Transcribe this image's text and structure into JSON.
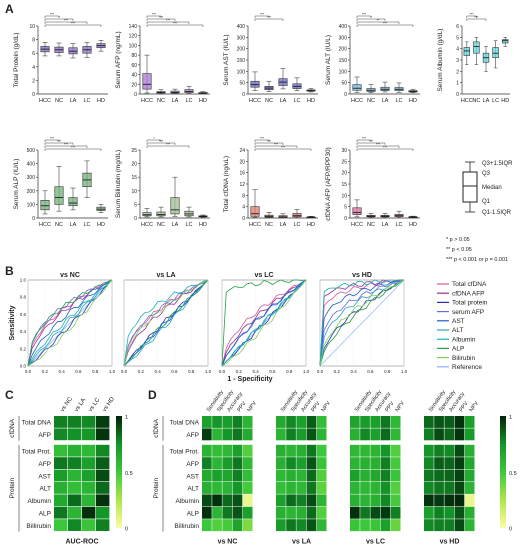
{
  "colors": {
    "HCC": "#a975d6",
    "NC": "#c8a8e6",
    "LA": "#8a6fc8",
    "LC": "#9b86d8",
    "HD": "#7b55c4",
    "ALB": "#5fd8e0",
    "ALP": "#72b27a",
    "BIL": "#9fbf8f",
    "CFD": "#e07a6a",
    "AFPR": "#e06aa0",
    "roc": {
      "total_cfdna": "#d05a9a",
      "cfdna_afp": "#9a2e96",
      "total_protein": "#2b2bb4",
      "serum_afp": "#6b6be0",
      "ast": "#1c5cc8",
      "alt": "#2aa0c8",
      "albumin": "#16b4b4",
      "alp": "#22a044",
      "bilirubin": "#7ed060",
      "reference": "#8fb3ff"
    }
  },
  "panel_labels": {
    "A": "A",
    "B": "B",
    "C": "C",
    "D": "D"
  },
  "groups": [
    "HCC",
    "NC",
    "LA",
    "LC",
    "HD"
  ],
  "boxplots": [
    {
      "ylabel": "Total Protein (g/dL)",
      "ticks": [
        "0",
        "2",
        "4",
        "6",
        "8",
        "10"
      ],
      "ylim": [
        0,
        10
      ],
      "color": "#8a6fc8",
      "stats": [
        [
          5.6,
          6.2,
          6.6,
          7.0,
          7.6
        ],
        [
          5.6,
          6.1,
          6.5,
          6.9,
          7.5
        ],
        [
          5.3,
          5.9,
          6.3,
          6.8,
          7.4
        ],
        [
          5.4,
          6.0,
          6.5,
          7.0,
          7.6
        ],
        [
          6.3,
          6.8,
          7.1,
          7.4,
          7.9
        ]
      ],
      "sig": [
        "***",
        "*",
        "***",
        "***"
      ]
    },
    {
      "ylabel": "Serum AFP (ng/mL)",
      "ticks": [
        "0",
        "20",
        "40",
        "60",
        "80",
        "100",
        "120",
        "140"
      ],
      "ylim": [
        0,
        140
      ],
      "color": "#a975d6",
      "stats": [
        [
          2,
          10,
          20,
          42,
          80
        ],
        [
          1,
          2,
          3,
          5,
          9
        ],
        [
          1,
          2,
          3,
          6,
          10
        ],
        [
          1,
          3,
          5,
          9,
          16
        ],
        [
          1,
          2,
          2,
          3,
          5
        ]
      ],
      "sig": [
        "***",
        "***",
        "***",
        "***"
      ]
    },
    {
      "ylabel": "Serum AST (IU/L)",
      "ticks": [
        "0",
        "50",
        "100",
        "150",
        "200",
        "300",
        "400"
      ],
      "ylim": [
        0,
        400
      ],
      "color": "#6a68cc",
      "stats": [
        [
          20,
          40,
          55,
          75,
          130
        ],
        [
          15,
          25,
          35,
          45,
          75
        ],
        [
          30,
          50,
          70,
          90,
          150
        ],
        [
          20,
          32,
          45,
          60,
          95
        ],
        [
          12,
          17,
          20,
          24,
          32
        ]
      ],
      "sig": [
        "***",
        "***"
      ]
    },
    {
      "ylabel": "Serum ALT (IU/L)",
      "ticks": [
        "0",
        "50",
        "100",
        "150",
        "200",
        "300",
        "400"
      ],
      "ylim": [
        0,
        400
      ],
      "color": "#6ab8d8",
      "stats": [
        [
          10,
          22,
          34,
          55,
          100
        ],
        [
          8,
          15,
          22,
          32,
          55
        ],
        [
          12,
          20,
          28,
          40,
          70
        ],
        [
          10,
          20,
          28,
          38,
          65
        ],
        [
          8,
          12,
          15,
          20,
          28
        ]
      ],
      "sig": [
        "***",
        "*",
        "**",
        "***"
      ]
    },
    {
      "ylabel": "Serum Albumin (g/dL)",
      "ticks": [
        "0",
        "1",
        "2",
        "3",
        "4",
        "5",
        "6"
      ],
      "ylim": [
        0,
        6
      ],
      "color": "#5fd8e0",
      "stats": [
        [
          2.6,
          3.4,
          3.8,
          4.1,
          4.6
        ],
        [
          2.6,
          3.6,
          4.2,
          4.6,
          5.0
        ],
        [
          2.0,
          2.8,
          3.2,
          3.6,
          4.2
        ],
        [
          2.3,
          3.2,
          3.6,
          4.1,
          4.7
        ],
        [
          4.2,
          4.5,
          4.7,
          4.8,
          5.0
        ]
      ],
      "sig": [
        "***",
        "***"
      ]
    },
    {
      "ylabel": "Serum ALP (IU/L)",
      "ticks": [
        "0",
        "100",
        "200",
        "300",
        "400",
        "500"
      ],
      "ylim": [
        0,
        500
      ],
      "color": "#72b27a",
      "stats": [
        [
          30,
          60,
          90,
          130,
          200
        ],
        [
          50,
          100,
          150,
          230,
          380
        ],
        [
          60,
          90,
          110,
          150,
          220
        ],
        [
          150,
          230,
          280,
          330,
          420
        ],
        [
          40,
          55,
          65,
          80,
          100
        ]
      ],
      "sig": [
        "***",
        "***",
        "***",
        "***"
      ]
    },
    {
      "ylabel": "Serum Bilirubin (mg/dL)",
      "ticks": [
        "0",
        "5",
        "10",
        "15",
        "20",
        "25"
      ],
      "ylim": [
        0,
        25
      ],
      "color": "#9fbf8f",
      "stats": [
        [
          0.4,
          0.8,
          1.2,
          2.0,
          3.5
        ],
        [
          0.4,
          0.8,
          1.3,
          2.2,
          4.0
        ],
        [
          0.6,
          1.5,
          3.0,
          7.5,
          15
        ],
        [
          0.4,
          0.8,
          1.5,
          2.5,
          4.0
        ],
        [
          0.3,
          0.5,
          0.6,
          0.8,
          1.1
        ]
      ],
      "sig": [
        "*",
        "***",
        "***"
      ]
    },
    {
      "ylabel": "Total cfDNA (ng/uL)",
      "ticks": [
        "0",
        "4",
        "8",
        "12",
        "16",
        "20",
        "24"
      ],
      "ylim": [
        0,
        24
      ],
      "color": "#e07a6a",
      "stats": [
        [
          0.2,
          0.6,
          1.5,
          4.0,
          10
        ],
        [
          0.1,
          0.3,
          0.6,
          1.0,
          2.0
        ],
        [
          0.1,
          0.2,
          0.4,
          0.8,
          1.5
        ],
        [
          0.1,
          0.4,
          0.8,
          1.6,
          3.0
        ],
        [
          0.1,
          0.2,
          0.3,
          0.4,
          0.6
        ]
      ],
      "sig": [
        "***",
        "***",
        "***",
        "***"
      ]
    },
    {
      "ylabel": "cfDNA AFP (AFP/RPP30)",
      "ticks": [
        "0",
        "5",
        "10",
        "15",
        "20",
        "25",
        "30"
      ],
      "ylim": [
        0,
        30
      ],
      "color": "#e06aa0",
      "stats": [
        [
          0.5,
          1.5,
          2.5,
          4.5,
          8
        ],
        [
          0.2,
          0.5,
          0.8,
          1.2,
          2.0
        ],
        [
          0.2,
          0.5,
          0.8,
          1.2,
          2.0
        ],
        [
          0.2,
          0.6,
          1.0,
          1.6,
          3.0
        ],
        [
          0.1,
          0.3,
          0.4,
          0.6,
          0.8
        ]
      ],
      "sig": [
        "***",
        "***",
        "***",
        "***"
      ]
    }
  ],
  "legend_box": {
    "labels": [
      "Q3+1.5IQR",
      "Q3",
      "Median",
      "Q1",
      "Q1-1.5IQR"
    ]
  },
  "pvalues": [
    "* p > 0.05",
    "** p < 0.05",
    "*** p < 0.001 or p = 0.001"
  ],
  "roc": {
    "titles": [
      "vs NC",
      "vs LA",
      "vs LC",
      "vs HD"
    ],
    "ylabel": "Sensitivity",
    "xlabel": "1 - Specificity",
    "ticks": [
      "0.0",
      "0.2",
      "0.4",
      "0.6",
      "0.8",
      "1.0"
    ],
    "legend": [
      {
        "key": "total_cfdna",
        "label": "Total cfDNA"
      },
      {
        "key": "cfdna_afp",
        "label": "cfDNA AFP"
      },
      {
        "key": "total_protein",
        "label": "Total protein"
      },
      {
        "key": "serum_afp",
        "label": "serum AFP"
      },
      {
        "key": "ast",
        "label": "AST"
      },
      {
        "key": "alt",
        "label": "ALT"
      },
      {
        "key": "albumin",
        "label": "Albumin"
      },
      {
        "key": "alp",
        "label": "ALP"
      },
      {
        "key": "bilirubin",
        "label": "Bilirubin"
      },
      {
        "key": "reference",
        "label": "Reference"
      }
    ]
  },
  "auc": {
    "title": "AUC-ROC",
    "columns": [
      "vs NC",
      "vs LA",
      "vs LC",
      "vs HD"
    ],
    "group_cfdna": "cfDNA",
    "group_protein": "Protein",
    "rows": [
      "Total DNA",
      "AFP",
      "Total Prot.",
      "AFP",
      "AST",
      "ALT",
      "Albumin",
      "ALP",
      "Billirubin"
    ],
    "values": [
      [
        0.8,
        0.8,
        0.78,
        0.95
      ],
      [
        0.78,
        0.76,
        0.74,
        0.97
      ],
      [
        0.55,
        0.62,
        0.58,
        0.78
      ],
      [
        0.82,
        0.8,
        0.7,
        0.88
      ],
      [
        0.72,
        0.6,
        0.7,
        0.92
      ],
      [
        0.62,
        0.55,
        0.6,
        0.85
      ],
      [
        0.66,
        0.85,
        0.6,
        0.98
      ],
      [
        0.82,
        0.6,
        0.98,
        0.75
      ],
      [
        0.5,
        0.78,
        0.52,
        0.8
      ]
    ],
    "scale": [
      "1",
      "0.5",
      "0"
    ]
  },
  "metrics": {
    "columns": [
      "Sensitivity",
      "Specificity",
      "Accuracy",
      "PPV",
      "NPV"
    ],
    "panels": [
      "vs NC",
      "vs LA",
      "vs LC",
      "vs HD"
    ],
    "group_cfdna": "cfDNA",
    "group_protein": "Protein",
    "rows": [
      "Total DNA",
      "AFP",
      "Total Prot.",
      "AFP",
      "AST",
      "ALT",
      "Albumin",
      "ALP",
      "Billirubin"
    ],
    "values": [
      [
        [
          0.7,
          0.75,
          0.72,
          0.8,
          0.6
        ],
        [
          0.65,
          0.78,
          0.7,
          0.88,
          0.55
        ],
        [
          0.68,
          0.72,
          0.7,
          0.82,
          0.58
        ],
        [
          0.85,
          0.9,
          0.88,
          0.98,
          0.7
        ]
      ],
      [
        [
          0.95,
          0.6,
          0.75,
          0.82,
          0.65
        ],
        [
          0.6,
          0.8,
          0.72,
          0.9,
          0.6
        ],
        [
          0.62,
          0.78,
          0.7,
          0.85,
          0.58
        ],
        [
          0.8,
          0.92,
          0.86,
          0.97,
          0.72
        ]
      ],
      [
        [
          0.6,
          0.55,
          0.58,
          0.7,
          0.45
        ],
        [
          0.62,
          0.6,
          0.62,
          0.82,
          0.5
        ],
        [
          0.58,
          0.58,
          0.6,
          0.75,
          0.45
        ],
        [
          0.75,
          0.8,
          0.78,
          0.92,
          0.62
        ]
      ],
      [
        [
          0.8,
          0.6,
          0.72,
          0.82,
          0.58
        ],
        [
          0.62,
          0.78,
          0.7,
          0.9,
          0.52
        ],
        [
          0.6,
          0.62,
          0.62,
          0.8,
          0.48
        ],
        [
          0.78,
          0.88,
          0.86,
          0.95,
          0.66
        ]
      ],
      [
        [
          0.65,
          0.7,
          0.68,
          0.8,
          0.55
        ],
        [
          0.58,
          0.62,
          0.6,
          0.85,
          0.45
        ],
        [
          0.7,
          0.62,
          0.66,
          0.8,
          0.52
        ],
        [
          0.82,
          0.85,
          0.86,
          0.94,
          0.65
        ]
      ],
      [
        [
          0.62,
          0.58,
          0.6,
          0.75,
          0.48
        ],
        [
          0.55,
          0.6,
          0.58,
          0.82,
          0.42
        ],
        [
          0.6,
          0.58,
          0.6,
          0.76,
          0.45
        ],
        [
          0.78,
          0.82,
          0.82,
          0.93,
          0.6
        ]
      ],
      [
        [
          0.92,
          0.98,
          0.85,
          0.9,
          0.05
        ],
        [
          0.7,
          0.85,
          0.8,
          0.92,
          0.6
        ],
        [
          0.62,
          0.6,
          0.62,
          0.78,
          0.48
        ],
        [
          0.98,
          0.96,
          0.98,
          1.0,
          0.05
        ]
      ],
      [
        [
          0.98,
          0.6,
          0.82,
          0.9,
          0.7
        ],
        [
          0.62,
          0.6,
          0.62,
          0.85,
          0.45
        ],
        [
          0.98,
          0.82,
          0.92,
          0.96,
          0.8
        ],
        [
          0.7,
          0.8,
          0.76,
          0.9,
          0.62
        ]
      ],
      [
        [
          0.5,
          0.45,
          0.48,
          0.68,
          0.35
        ],
        [
          0.72,
          0.82,
          0.78,
          0.9,
          0.58
        ],
        [
          0.52,
          0.5,
          0.52,
          0.7,
          0.4
        ],
        [
          0.78,
          0.8,
          0.8,
          0.92,
          0.6
        ]
      ]
    ],
    "scale": [
      "1",
      "0.5",
      "0"
    ]
  }
}
